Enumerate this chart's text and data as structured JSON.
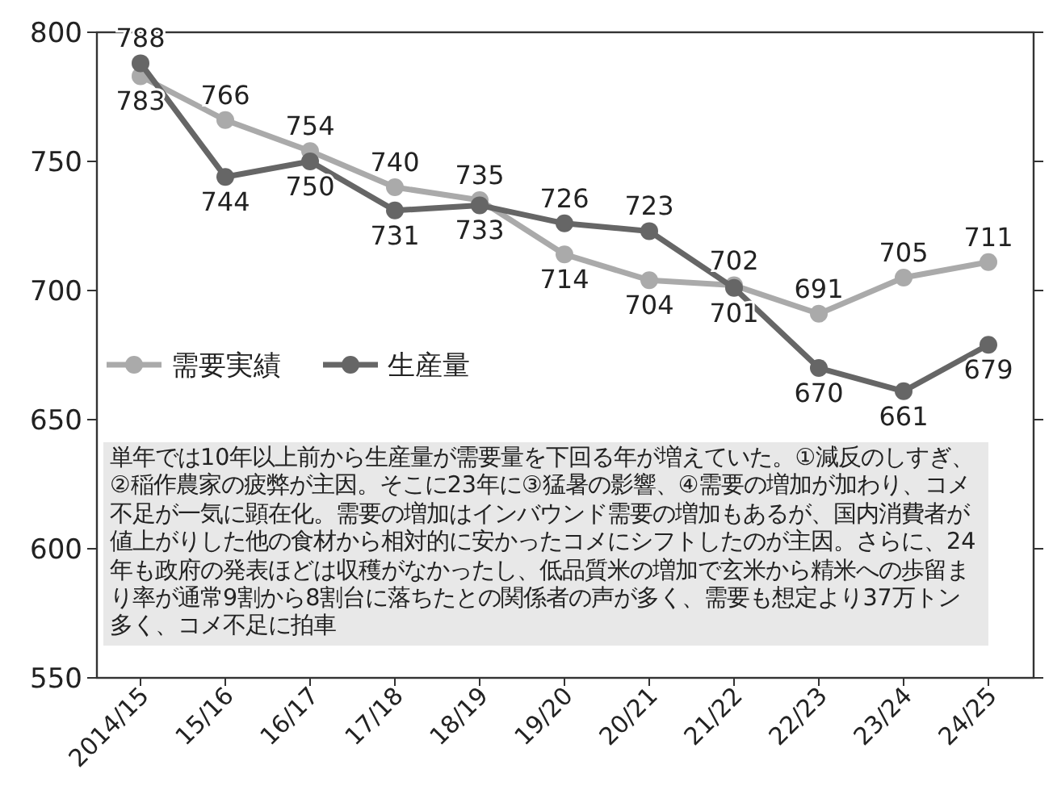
{
  "chart_data": {
    "type": "line",
    "categories": [
      "2014/15",
      "15/16",
      "16/17",
      "17/18",
      "18/19",
      "19/20",
      "20/21",
      "21/22",
      "22/23",
      "23/24",
      "24/25"
    ],
    "series": [
      {
        "name": "需要実績",
        "color": "#aaaaaa",
        "values": [
          783,
          766,
          754,
          740,
          735,
          714,
          704,
          702,
          691,
          705,
          711
        ]
      },
      {
        "name": "生産量",
        "color": "#666666",
        "values": [
          788,
          744,
          750,
          731,
          733,
          726,
          723,
          701,
          670,
          661,
          679
        ]
      }
    ],
    "ylim": [
      550,
      800
    ],
    "yticks": [
      550,
      600,
      650,
      700,
      750,
      800
    ],
    "data_labels": true,
    "marker": "circle",
    "legend": "left",
    "annotations": [
      "単年では10年以上前から生産量が需要量を下回る年が増えていた。①減反のしすぎ、②稲作農家の疲弊が主因。そこに23年に③猛暑の影響、④需要の増加が加わり、コメ不足が一気に顕在化。需要の増加はインバウンド需要の増加もあるが、国内消費者が値上がりした他の食材から相対的に安かったコメにシフトしたのが主因。さらに、24年も政府の発表ほどは収穫がなかったし、低品質米の増加で玄米から精米への歩留まり率が通常9割から8割台に落ちたとの関係者の声が多く、需要も想定より37万トン多く、コメ不足に拍車"
    ]
  }
}
